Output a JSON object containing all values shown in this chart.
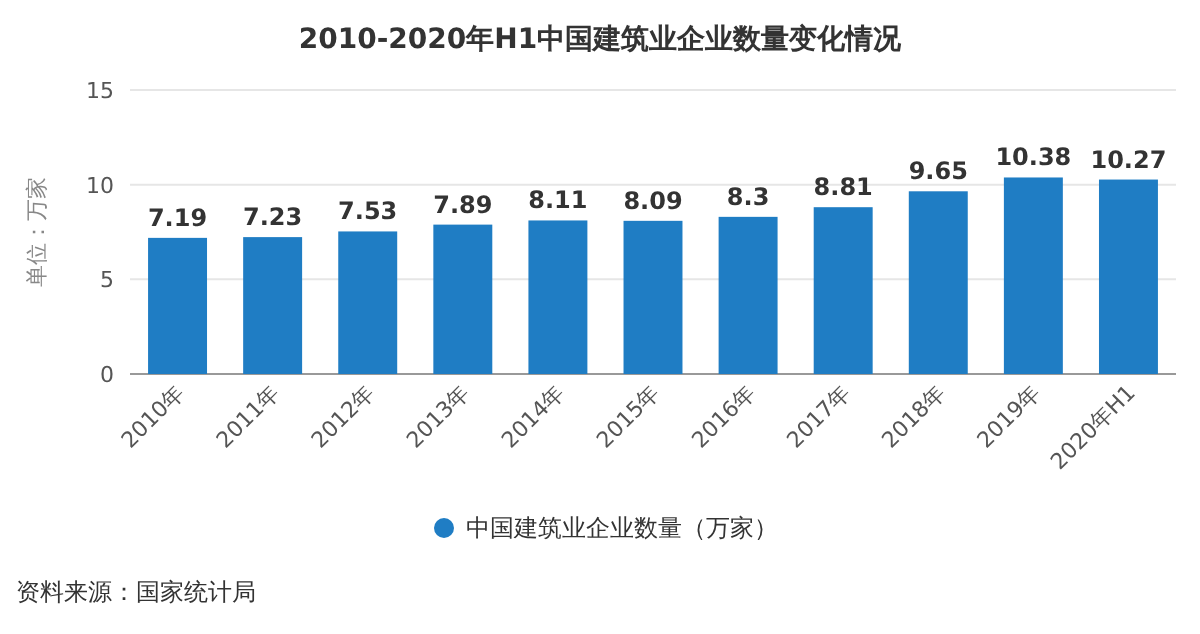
{
  "chart_data": {
    "type": "bar",
    "title": "2010-2020年H1中国建筑业企业数量变化情况",
    "ylabel": "单位：万家",
    "categories": [
      "2010年",
      "2011年",
      "2012年",
      "2013年",
      "2014年",
      "2015年",
      "2016年",
      "2017年",
      "2018年",
      "2019年",
      "2020年H1"
    ],
    "series": [
      {
        "name": "中国建筑业企业数量（万家）",
        "color": "#1f7dc4",
        "values": [
          7.19,
          7.23,
          7.53,
          7.89,
          8.11,
          8.09,
          8.3,
          8.81,
          9.65,
          10.38,
          10.27
        ]
      }
    ],
    "ylim": [
      0,
      15
    ],
    "yticks": [
      0,
      5,
      10,
      15
    ],
    "grid": "y",
    "legend": "bottom",
    "data_labels": true,
    "annotations": [
      "资料来源：国家统计局"
    ]
  }
}
